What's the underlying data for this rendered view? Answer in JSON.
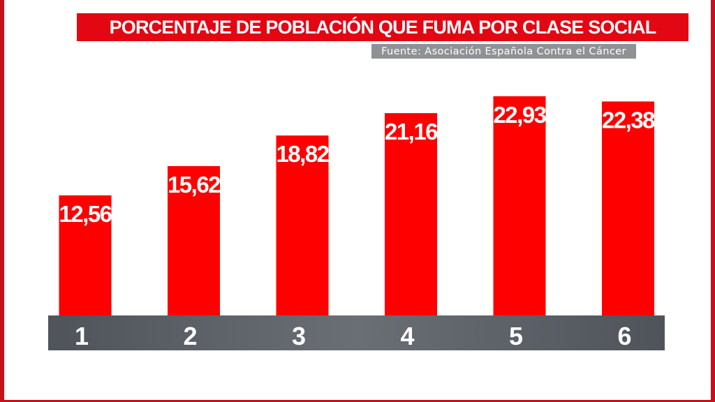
{
  "chart_data": {
    "type": "bar",
    "title": "PORCENTAJE DE POBLACIÓN QUE FUMA POR CLASE SOCIAL",
    "subtitle": "Fuente: Asociación Española Contra el Cáncer",
    "categories": [
      "1",
      "2",
      "3",
      "4",
      "5",
      "6"
    ],
    "values": [
      12.56,
      15.62,
      18.82,
      21.16,
      22.93,
      22.38
    ],
    "value_labels": [
      "12,56",
      "15,62",
      "18,82",
      "21,16",
      "22,93",
      "22,38"
    ],
    "xlabel": "",
    "ylabel": "",
    "ylim": [
      0,
      30
    ],
    "grid": false,
    "legend": "none"
  },
  "colors": {
    "bar": "#ff0000",
    "title_background": "#e30613",
    "source_background": "#8f9294",
    "axis_band": "#5d6168",
    "frame": "#c8101a"
  }
}
